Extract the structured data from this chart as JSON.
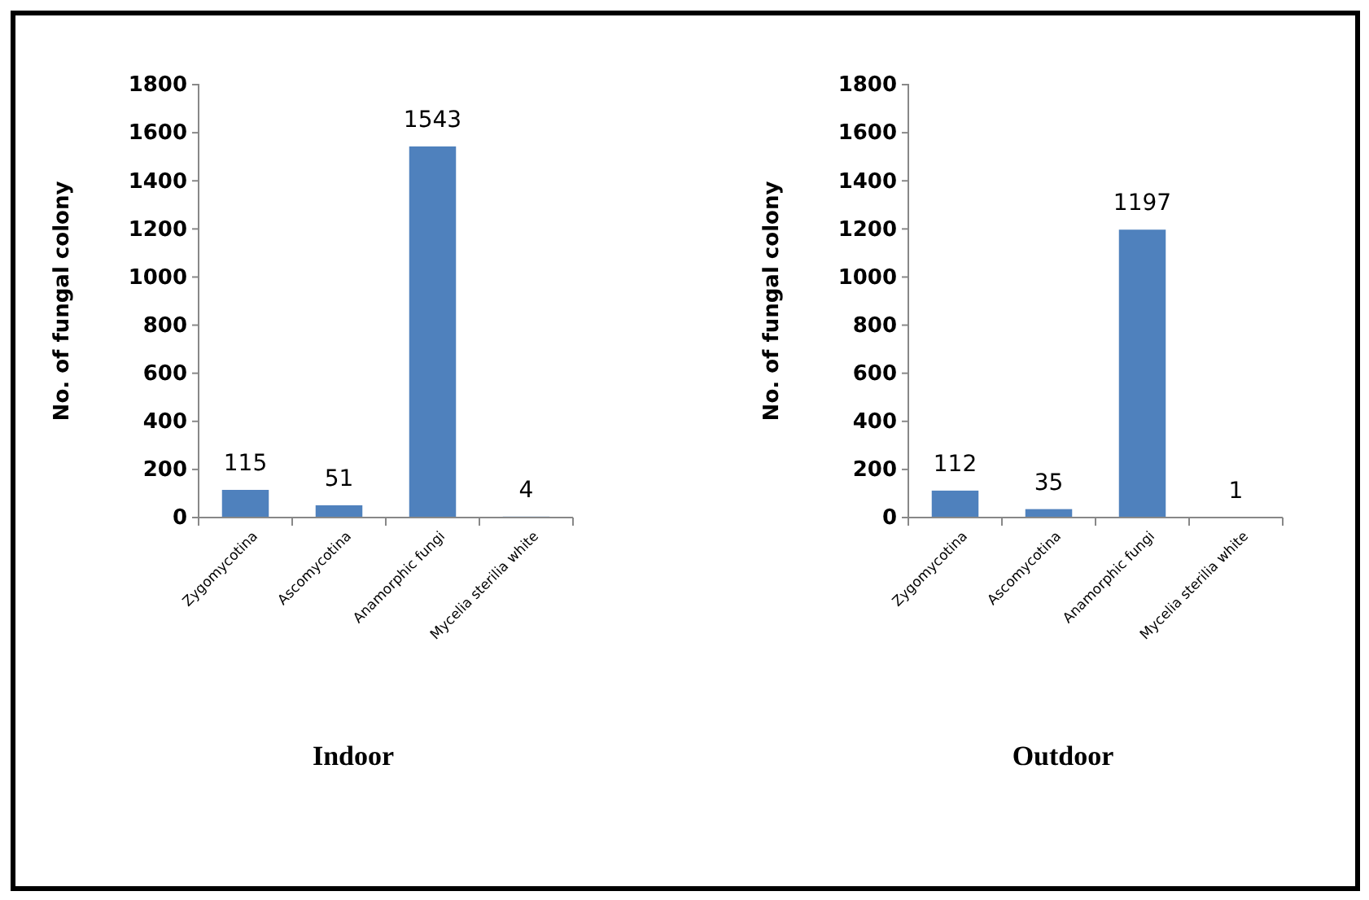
{
  "chart_data": [
    {
      "type": "bar",
      "xlabel": "Indoor",
      "ylabel": "No. of fungal colony",
      "categories": [
        "Zygomycotina",
        "Ascomycotina",
        "Anamorphic fungi",
        "Mycelia sterilia white"
      ],
      "values": [
        115,
        51,
        1543,
        4
      ],
      "color": "#4f81bd",
      "ylim": [
        0,
        1800
      ],
      "yticks": [
        0,
        200,
        400,
        600,
        800,
        1000,
        1200,
        1400,
        1600,
        1800
      ],
      "data_labels": true,
      "grid": false
    },
    {
      "type": "bar",
      "xlabel": "Outdoor",
      "ylabel": "No. of fungal colony",
      "categories": [
        "Zygomycotina",
        "Ascomycotina",
        "Anamorphic fungi",
        "Mycelia sterilia white"
      ],
      "values": [
        112,
        35,
        1197,
        1
      ],
      "color": "#4f81bd",
      "ylim": [
        0,
        1800
      ],
      "yticks": [
        0,
        200,
        400,
        600,
        800,
        1000,
        1200,
        1400,
        1600,
        1800
      ],
      "data_labels": true,
      "grid": false
    }
  ]
}
